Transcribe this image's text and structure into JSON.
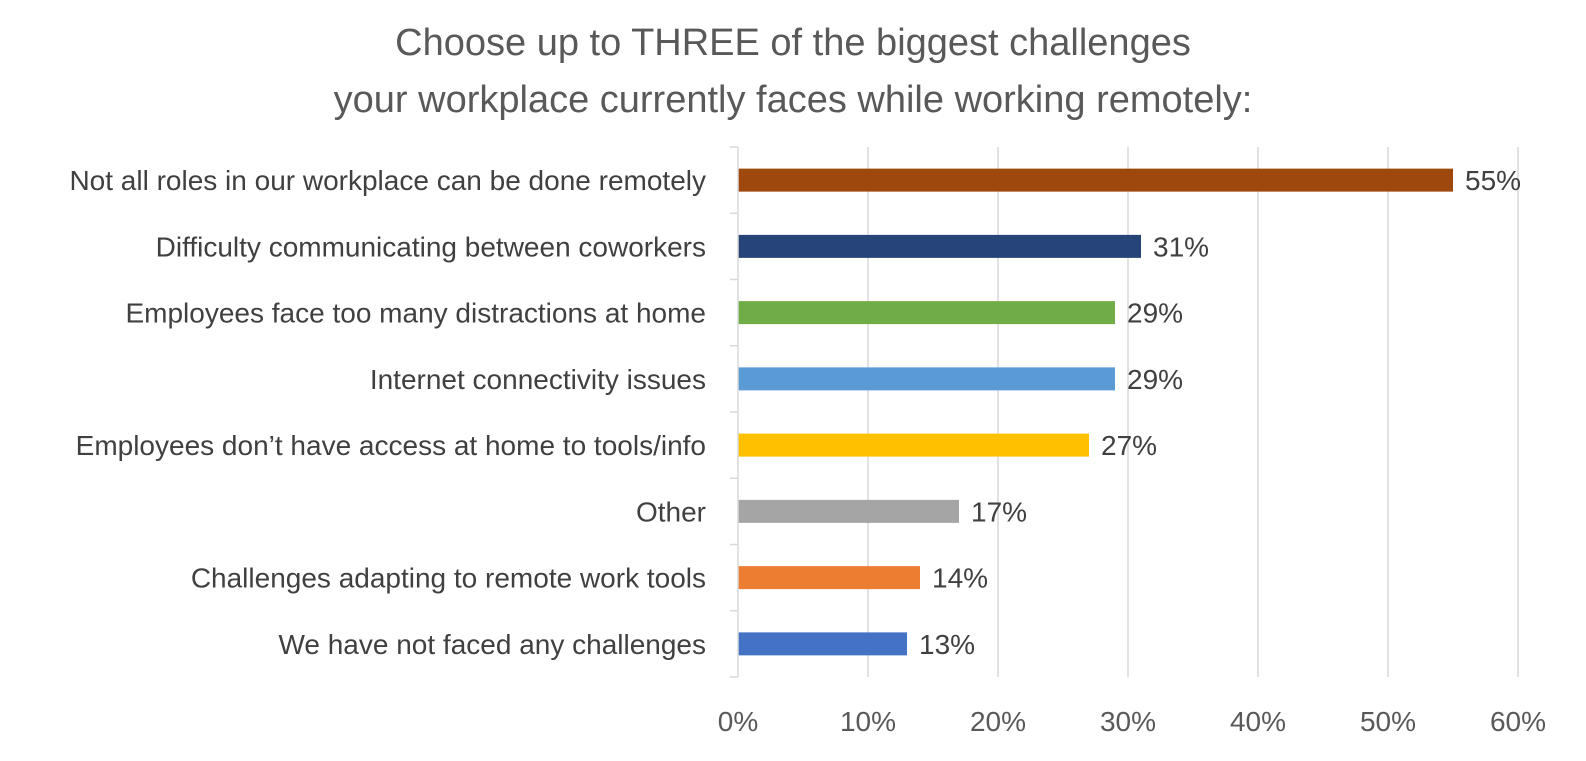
{
  "chart_data": {
    "type": "bar",
    "orientation": "horizontal",
    "title_lines": [
      "Choose up to THREE of the biggest challenges",
      "your workplace currently faces while working remotely:"
    ],
    "categories": [
      "Not all roles in our workplace can be done remotely",
      "Difficulty communicating between coworkers",
      "Employees face too many distractions at home",
      "Internet connectivity issues",
      "Employees don’t have access at home to tools/info",
      "Other",
      "Challenges adapting to remote work tools",
      "We have not faced any challenges"
    ],
    "values": [
      55,
      31,
      29,
      29,
      27,
      17,
      14,
      13
    ],
    "value_labels": [
      "55%",
      "31%",
      "29%",
      "29%",
      "27%",
      "17%",
      "14%",
      "13%"
    ],
    "colors": [
      "#9E480E",
      "#264478",
      "#70AD47",
      "#5B9BD5",
      "#FFC000",
      "#A5A5A5",
      "#ED7D31",
      "#4472C4"
    ],
    "xlim": [
      0,
      60
    ],
    "x_ticks": [
      0,
      10,
      20,
      30,
      40,
      50,
      60
    ],
    "x_tick_labels": [
      "0%",
      "10%",
      "20%",
      "30%",
      "40%",
      "50%",
      "60%"
    ],
    "grid": "vertical",
    "legend": "none",
    "gridline_color": "#D9D9D9"
  }
}
